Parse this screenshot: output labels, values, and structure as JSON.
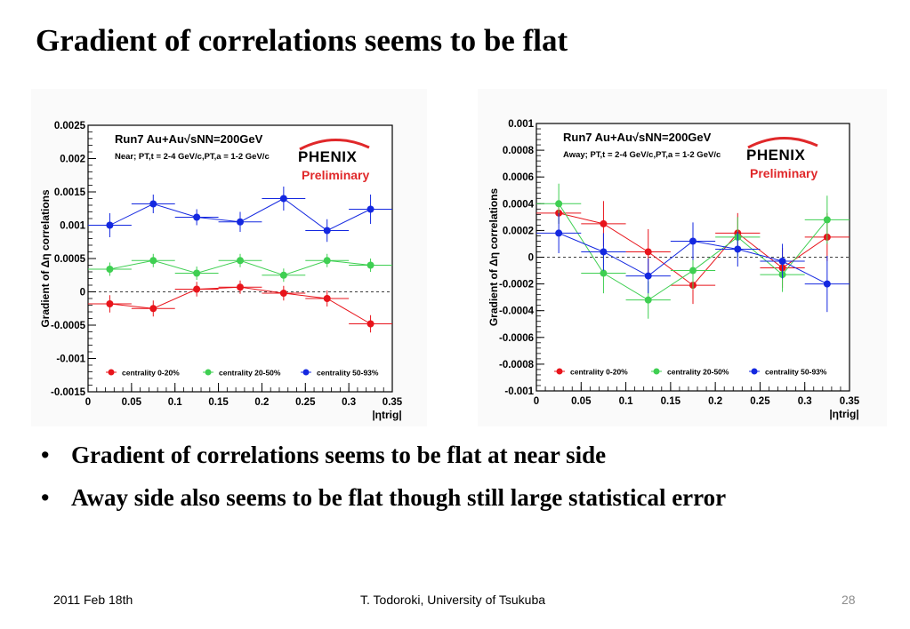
{
  "slide": {
    "title": "Gradient of correlations seems to be flat",
    "bullets": [
      "Gradient of correlations seems to be flat at near side",
      "Away side also seems to be flat though still large statistical error"
    ],
    "footer": {
      "date": "2011 Feb 18th",
      "author": "T. Todoroki, University of Tsukuba",
      "page": "28"
    }
  },
  "colors": {
    "red": "#e8141b",
    "green": "#3fcf52",
    "blue": "#1428e0",
    "logo_red": "#e0282a"
  },
  "chart_data": [
    {
      "type": "scatter",
      "panel": "left",
      "title": "Run7 Au+Au√sNN=200GeV",
      "subtitle": "Near; PT,t = 2-4 GeV/c,PT,a = 1-2 GeV/c",
      "logo_text": "PHENIX",
      "preliminary": "Preliminary",
      "ylabel": "Gradient of Δη correlations",
      "xlabel": "|ηtrig|",
      "xlim": [
        0,
        0.35
      ],
      "ylim": [
        -0.0015,
        0.0025
      ],
      "x_ticks": [
        "0",
        "0.05",
        "0.1",
        "0.15",
        "0.2",
        "0.25",
        "0.3",
        "0.35"
      ],
      "y_ticks": [
        "0.0025",
        "0.002",
        "0.0015",
        "0.001",
        "0.0005",
        "0",
        "-0.0005",
        "-0.001",
        "-0.0015"
      ],
      "x": [
        0.025,
        0.075,
        0.125,
        0.175,
        0.225,
        0.275,
        0.325
      ],
      "series": [
        {
          "name": "centrality 0-20%",
          "color": "#e8141b",
          "values": [
            -0.00018,
            -0.00025,
            4e-05,
            7e-05,
            -2e-05,
            -0.0001,
            -0.00048
          ],
          "errors": [
            0.00013,
            0.00012,
            0.00011,
            0.0001,
            0.00011,
            0.00012,
            0.00013
          ]
        },
        {
          "name": "centrality 20-50%",
          "color": "#3fcf52",
          "values": [
            0.00034,
            0.00047,
            0.00028,
            0.00047,
            0.00025,
            0.00047,
            0.0004
          ],
          "errors": [
            0.0001,
            0.0001,
            0.0001,
            0.0001,
            0.0001,
            0.0001,
            0.0001
          ]
        },
        {
          "name": "centrality 50-93%",
          "color": "#1428e0",
          "values": [
            0.001,
            0.00132,
            0.00112,
            0.00105,
            0.0014,
            0.00092,
            0.00124
          ],
          "errors": [
            0.00018,
            0.00014,
            0.00012,
            0.00015,
            0.00018,
            0.00017,
            0.00022
          ]
        }
      ]
    },
    {
      "type": "scatter",
      "panel": "right",
      "title": "Run7 Au+Au√sNN=200GeV",
      "subtitle": "Away; PT,t = 2-4 GeV/c,PT,a = 1-2 GeV/c",
      "logo_text": "PHENIX",
      "preliminary": "Preliminary",
      "ylabel": "Gradient of Δη correlations",
      "xlabel": "|ηtrig|",
      "xlim": [
        0,
        0.35
      ],
      "ylim": [
        -0.001,
        0.001
      ],
      "x_ticks": [
        "0",
        "0.05",
        "0.1",
        "0.15",
        "0.2",
        "0.25",
        "0.3",
        "0.35"
      ],
      "y_ticks": [
        "0.001",
        "0.0008",
        "0.0006",
        "0.0004",
        "0.0002",
        "0",
        "-0.0002",
        "-0.0004",
        "-0.0006",
        "-0.0008",
        "-0.001"
      ],
      "x": [
        0.025,
        0.075,
        0.125,
        0.175,
        0.225,
        0.275,
        0.325
      ],
      "series": [
        {
          "name": "centrality 0-20%",
          "color": "#e8141b",
          "values": [
            0.00033,
            0.00025,
            4e-05,
            -0.00021,
            0.00018,
            -8e-05,
            0.00015
          ],
          "errors": [
            8e-05,
            0.00017,
            0.00017,
            0.00014,
            0.00015,
            0.00015,
            0.00018
          ]
        },
        {
          "name": "centrality 20-50%",
          "color": "#3fcf52",
          "values": [
            0.0004,
            -0.00012,
            -0.00032,
            -0.0001,
            0.00015,
            -0.00013,
            0.00028
          ],
          "errors": [
            0.00015,
            0.00015,
            0.00014,
            0.00014,
            0.00015,
            0.00013,
            0.00018
          ]
        },
        {
          "name": "centrality 50-93%",
          "color": "#1428e0",
          "values": [
            0.00018,
            4e-05,
            -0.00014,
            0.00012,
            6e-05,
            -3e-05,
            -0.0002
          ],
          "errors": [
            0.00015,
            0.00014,
            0.00013,
            0.00014,
            0.00013,
            0.00013,
            0.00021
          ]
        }
      ]
    }
  ]
}
